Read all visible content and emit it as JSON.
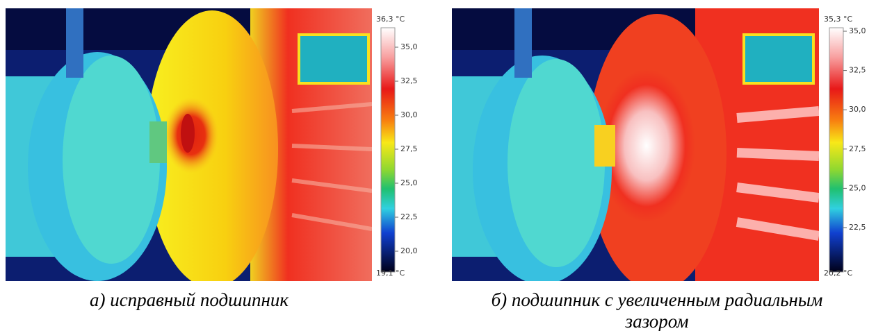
{
  "panels": [
    {
      "max_label": "36,3 °C",
      "min_label": "19,1 °C",
      "ticks": [
        "35,0",
        "32,5",
        "30,0",
        "27,5",
        "25,0",
        "22,5",
        "20,0"
      ],
      "caption": [
        "а) исправный подшипник"
      ]
    },
    {
      "max_label": "35,3 °C",
      "min_label": "20,2 °C",
      "ticks": [
        "35,0",
        "32,5",
        "30,0",
        "27,5",
        "25,0",
        "22,5"
      ],
      "caption": [
        "б) подшипник с увеличенным радиальным",
        "зазором"
      ]
    }
  ]
}
